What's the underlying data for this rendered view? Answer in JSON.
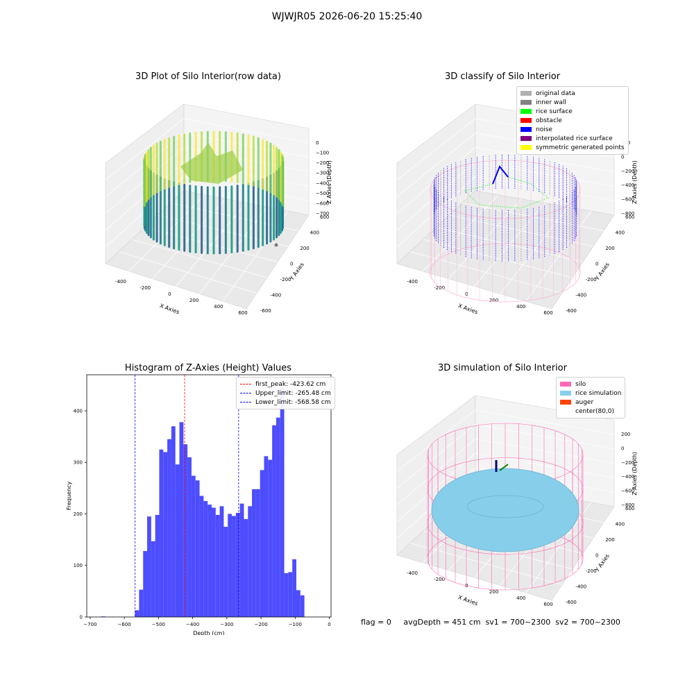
{
  "suptitle": "WJWJR05 2026-06-20 15:25:40",
  "panels": {
    "raw": {
      "title": "3D Plot of Silo Interior(row data)",
      "x_label": "X Axies",
      "y_label": "Y Axies",
      "z_label": "Z Axies (Depth)",
      "x_ticks": [
        "-400",
        "-200",
        "0",
        "200",
        "400",
        "600"
      ],
      "y_ticks": [
        "600",
        "400",
        "200",
        "0",
        "-200",
        "-400",
        "-600"
      ],
      "z_ticks": [
        "0",
        "−100",
        "−200",
        "−300",
        "−400",
        "−500",
        "−600",
        "−700"
      ]
    },
    "classify": {
      "title": "3D classify of Silo Interior",
      "x_label": "X Axies",
      "y_label": "Y Axies",
      "z_label": "Z Axies (Depth)",
      "x_ticks": [
        "-400",
        "-200",
        "0",
        "200",
        "400",
        "600"
      ],
      "y_ticks": [
        "600",
        "400",
        "200",
        "0",
        "-200",
        "-400",
        "-600"
      ],
      "z_ticks": [
        "200",
        "0",
        "−200",
        "−400",
        "−600",
        "−800"
      ],
      "legend": [
        {
          "label": "original data",
          "color": "#b0b0b0"
        },
        {
          "label": "inner wall",
          "color": "#808080"
        },
        {
          "label": "rice surface",
          "color": "#00ff00"
        },
        {
          "label": "obstacle",
          "color": "#ff0000"
        },
        {
          "label": "noise",
          "color": "#0000ff"
        },
        {
          "label": "interpolated rice surface",
          "color": "#800080"
        },
        {
          "label": "symmetric generated points",
          "color": "#ffff00"
        }
      ]
    },
    "simulation": {
      "title": "3D simulation of Silo Interior",
      "x_label": "X Axies",
      "y_label": "Y Axies",
      "z_label": "Z Axies (Depth)",
      "x_ticks": [
        "-400",
        "-200",
        "0",
        "200",
        "400",
        "600"
      ],
      "y_ticks": [
        "600",
        "400",
        "200",
        "0",
        "-200",
        "-400",
        "-600"
      ],
      "z_ticks": [
        "200",
        "0",
        "−200",
        "−400",
        "−600",
        "−800"
      ],
      "legend": [
        {
          "label": "silo",
          "color": "#ff69b4"
        },
        {
          "label": "rice simulation",
          "color": "#87ceeb"
        },
        {
          "label": "auger",
          "color": "#ff4500"
        },
        {
          "label": "center(80,0)",
          "color": ""
        }
      ]
    }
  },
  "status": {
    "flag": "flag = 0",
    "avg_depth": "avgDepth = 451 cm",
    "sv1": "sv1 = 700~2300",
    "sv2": "sv2 = 700~2300"
  },
  "colors": {
    "bar": "#4d4dff",
    "peak_line": "#ff0000",
    "limit_line": "#0000ff"
  },
  "chart_data": {
    "type": "bar",
    "title": "Histogram of Z-Axies (Height) Values",
    "xlabel": "Depth (cm)",
    "ylabel": "Frequency",
    "xlim": [
      -710,
      5
    ],
    "ylim": [
      0,
      470
    ],
    "x_ticks": [
      -700,
      -600,
      -500,
      -400,
      -300,
      -200,
      -100,
      0
    ],
    "y_ticks": [
      0,
      100,
      200,
      300,
      400
    ],
    "bin_width": 11.8,
    "bins": [
      {
        "start": -668,
        "count": 1
      },
      {
        "start": -568.6,
        "count": 13
      },
      {
        "start": -556.8,
        "count": 53
      },
      {
        "start": -545.0,
        "count": 128
      },
      {
        "start": -533.2,
        "count": 195
      },
      {
        "start": -521.4,
        "count": 147
      },
      {
        "start": -509.6,
        "count": 198
      },
      {
        "start": -497.8,
        "count": 325
      },
      {
        "start": -486.0,
        "count": 320
      },
      {
        "start": -474.2,
        "count": 345
      },
      {
        "start": -462.4,
        "count": 370
      },
      {
        "start": -450.6,
        "count": 296
      },
      {
        "start": -438.8,
        "count": 378
      },
      {
        "start": -427.0,
        "count": 335
      },
      {
        "start": -415.2,
        "count": 310
      },
      {
        "start": -403.4,
        "count": 274
      },
      {
        "start": -391.6,
        "count": 265
      },
      {
        "start": -379.8,
        "count": 235
      },
      {
        "start": -368.0,
        "count": 225
      },
      {
        "start": -356.2,
        "count": 218
      },
      {
        "start": -344.4,
        "count": 212
      },
      {
        "start": -332.6,
        "count": 198
      },
      {
        "start": -320.8,
        "count": 215
      },
      {
        "start": -309.0,
        "count": 175
      },
      {
        "start": -297.2,
        "count": 200
      },
      {
        "start": -285.4,
        "count": 196
      },
      {
        "start": -273.6,
        "count": 202
      },
      {
        "start": -261.8,
        "count": 220
      },
      {
        "start": -250.0,
        "count": 190
      },
      {
        "start": -238.2,
        "count": 215
      },
      {
        "start": -226.4,
        "count": 248
      },
      {
        "start": -214.6,
        "count": 248
      },
      {
        "start": -202.8,
        "count": 285
      },
      {
        "start": -191.0,
        "count": 312
      },
      {
        "start": -179.2,
        "count": 305
      },
      {
        "start": -167.4,
        "count": 372
      },
      {
        "start": -155.6,
        "count": 387
      },
      {
        "start": -143.8,
        "count": 445
      },
      {
        "start": -132.0,
        "count": 85
      },
      {
        "start": -120.2,
        "count": 87
      },
      {
        "start": -108.4,
        "count": 112
      },
      {
        "start": -96.6,
        "count": 52
      },
      {
        "start": -84.8,
        "count": 42
      }
    ],
    "lines": [
      {
        "name": "first_peak: -423.62 cm",
        "x": -423.62,
        "color": "#ff0000"
      },
      {
        "name": "Upper_limit: -265.48 cm",
        "x": -265.48,
        "color": "#0000ff"
      },
      {
        "name": "Lower_limit: -568.58 cm",
        "x": -568.58,
        "color": "#0000ff"
      }
    ],
    "legend_position": "top-right"
  }
}
